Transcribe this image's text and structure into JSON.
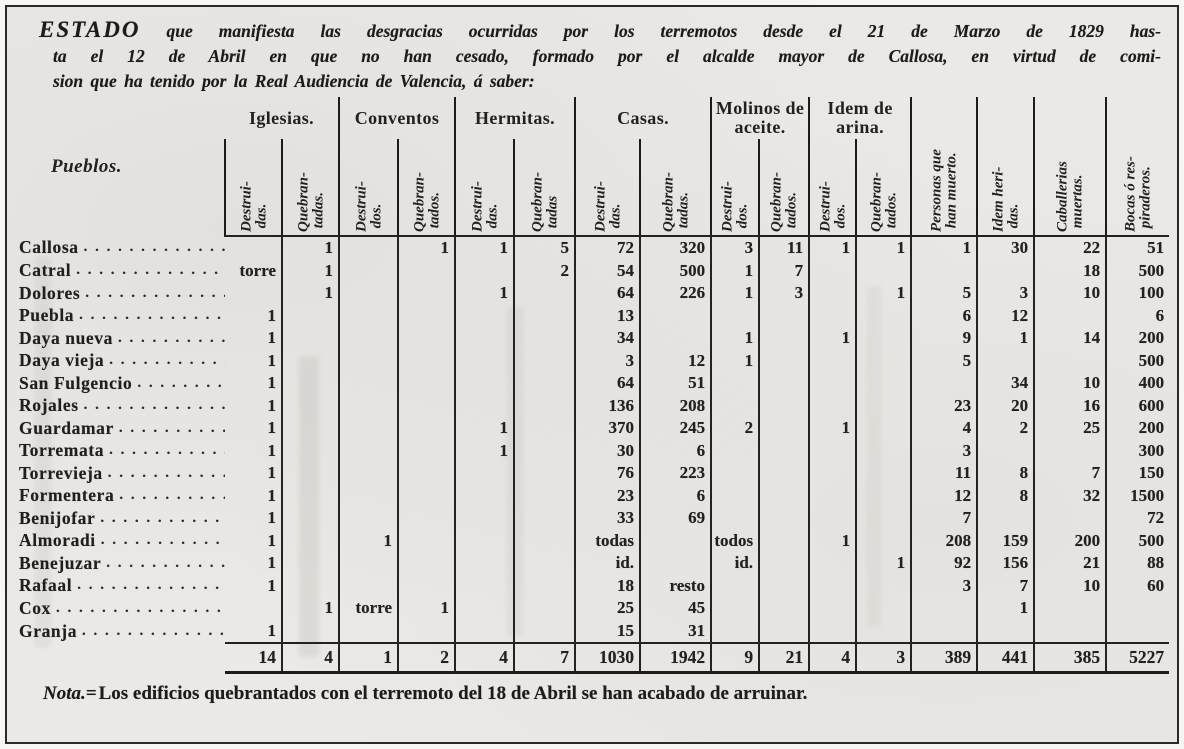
{
  "colors": {
    "paper": "#ebe9e6",
    "ink": "#211f1c",
    "rule": "#1c1c1c"
  },
  "title": {
    "lead": "ESTADO",
    "line1": "que manifiesta las desgracias ocurridas por los terremotos desde el 21 de Marzo de 1829 has-",
    "line2": "ta el 12 de Abril en que no han cesado, formado por el alcalde mayor de Callosa, en virtud de comi-",
    "line3": "sion que ha tenido por la Real Audiencia de Valencia, á saber:"
  },
  "note": {
    "label": "Nota.=",
    "text": "Los edificios quebrantados con el terremoto del 18 de Abril se han acabado de arruinar."
  },
  "dots_filler": ". . . . . . . . . . . . . . . . . . . . . . . . . . . .",
  "table": {
    "pueblos_header": "Pueblos.",
    "groups": [
      {
        "label": "Iglesias.",
        "cols": [
          "Destrui-\n das.",
          "Quebran-\n tadas."
        ]
      },
      {
        "label": "Conventos",
        "cols": [
          "Destrui-\n dos.",
          "Quebran-\n tados."
        ]
      },
      {
        "label": "Hermitas.",
        "cols": [
          "Destrui-\n das.",
          "Quebran-\n tadas"
        ]
      },
      {
        "label": "Casas.",
        "cols": [
          "Destrui-\n das.",
          "Quebran-\n tadas."
        ]
      },
      {
        "label": "Molinos de\naceite.",
        "cols": [
          "Destrui-\n dos.",
          "Quebran-\n tados."
        ]
      },
      {
        "label": "Idem de\narina.",
        "cols": [
          "Destrui-\n dos.",
          "Quebran-\n tados."
        ]
      }
    ],
    "tall_headers": [
      "Personas que\n han muerto.",
      "Idem heri-\n das.",
      "Caballerias\n muertas.",
      "Bocas ó res-\n piraderos."
    ],
    "rows": [
      {
        "pueblo": "Callosa",
        "values": [
          "",
          "1",
          "",
          "1",
          "1",
          "5",
          "72",
          "320",
          "3",
          "11",
          "1",
          "1",
          "1",
          "30",
          "22",
          "51"
        ]
      },
      {
        "pueblo": "Catral",
        "values": [
          "torre",
          "1",
          "",
          "",
          "",
          "2",
          "54",
          "500",
          "1",
          "7",
          "",
          "",
          "",
          "",
          "18",
          "500"
        ]
      },
      {
        "pueblo": "Dolores",
        "values": [
          "",
          "1",
          "",
          "",
          "1",
          "",
          "64",
          "226",
          "1",
          "3",
          "",
          "1",
          "5",
          "3",
          "10",
          "100"
        ]
      },
      {
        "pueblo": "Puebla",
        "values": [
          "1",
          "",
          "",
          "",
          "",
          "",
          "13",
          "",
          "",
          "",
          "",
          "",
          "6",
          "12",
          "",
          "6"
        ]
      },
      {
        "pueblo": "Daya nueva",
        "values": [
          "1",
          "",
          "",
          "",
          "",
          "",
          "34",
          "",
          "1",
          "",
          "1",
          "",
          "9",
          "1",
          "14",
          "200"
        ]
      },
      {
        "pueblo": "Daya vieja",
        "values": [
          "1",
          "",
          "",
          "",
          "",
          "",
          "3",
          "12",
          "1",
          "",
          "",
          "",
          "5",
          "",
          "",
          "500"
        ]
      },
      {
        "pueblo": "San Fulgencio",
        "values": [
          "1",
          "",
          "",
          "",
          "",
          "",
          "64",
          "51",
          "",
          "",
          "",
          "",
          "",
          "34",
          "10",
          "400"
        ]
      },
      {
        "pueblo": "Rojales",
        "values": [
          "1",
          "",
          "",
          "",
          "",
          "",
          "136",
          "208",
          "",
          "",
          "",
          "",
          "23",
          "20",
          "16",
          "600"
        ]
      },
      {
        "pueblo": "Guardamar",
        "values": [
          "1",
          "",
          "",
          "",
          "1",
          "",
          "370",
          "245",
          "2",
          "",
          "1",
          "",
          "4",
          "2",
          "25",
          "200"
        ]
      },
      {
        "pueblo": "Torremata",
        "values": [
          "1",
          "",
          "",
          "",
          "1",
          "",
          "30",
          "6",
          "",
          "",
          "",
          "",
          "3",
          "",
          "",
          "300"
        ]
      },
      {
        "pueblo": "Torrevieja",
        "values": [
          "1",
          "",
          "",
          "",
          "",
          "",
          "76",
          "223",
          "",
          "",
          "",
          "",
          "11",
          "8",
          "7",
          "150"
        ]
      },
      {
        "pueblo": "Formentera",
        "values": [
          "1",
          "",
          "",
          "",
          "",
          "",
          "23",
          "6",
          "",
          "",
          "",
          "",
          "12",
          "8",
          "32",
          "1500"
        ]
      },
      {
        "pueblo": "Benijofar",
        "values": [
          "1",
          "",
          "",
          "",
          "",
          "",
          "33",
          "69",
          "",
          "",
          "",
          "",
          "7",
          "",
          "",
          "72"
        ]
      },
      {
        "pueblo": "Almoradi",
        "values": [
          "1",
          "",
          "1",
          "",
          "",
          "",
          "todas",
          "",
          "todos",
          "",
          "1",
          "",
          "208",
          "159",
          "200",
          "500"
        ]
      },
      {
        "pueblo": "Benejuzar",
        "values": [
          "1",
          "",
          "",
          "",
          "",
          "",
          "id.",
          "",
          "id.",
          "",
          "",
          "1",
          "92",
          "156",
          "21",
          "88"
        ]
      },
      {
        "pueblo": "Rafaal",
        "values": [
          "1",
          "",
          "",
          "",
          "",
          "",
          "18",
          "resto",
          "",
          "",
          "",
          "",
          "3",
          "7",
          "10",
          "60"
        ]
      },
      {
        "pueblo": "Cox",
        "values": [
          "",
          "1",
          "torre",
          "1",
          "",
          "",
          "25",
          "45",
          "",
          "",
          "",
          "",
          "",
          "1",
          "",
          ""
        ]
      },
      {
        "pueblo": "Granja",
        "values": [
          "1",
          "",
          "",
          "",
          "",
          "",
          "15",
          "31",
          "",
          "",
          "",
          "",
          "",
          "",
          "",
          ""
        ]
      }
    ],
    "totals": [
      "14",
      "4",
      "1",
      "2",
      "4",
      "7",
      "1030",
      "1942",
      "9",
      "21",
      "4",
      "3",
      "389",
      "441",
      "385",
      "5227"
    ]
  }
}
